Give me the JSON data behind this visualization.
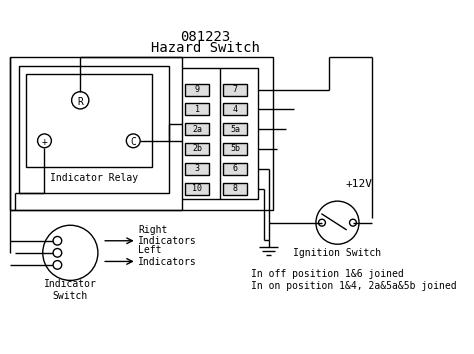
{
  "title_line1": "081223",
  "title_line2": "Hazard Switch",
  "bg_color": "#ffffff",
  "line_color": "#000000",
  "switch_pin_labels_left": [
    "9",
    "1",
    "2a",
    "2b",
    "3",
    "10"
  ],
  "switch_pin_labels_right": [
    "7",
    "4",
    "5a",
    "5b",
    "6",
    "8"
  ],
  "relay_label": "Indicator Relay",
  "indicator_switch_label": "Indicator\nSwitch",
  "ignition_label": "Ignition Switch",
  "right_ind_label": "Right\nIndicators",
  "left_ind_label": "Left\nIndicators",
  "note_line1": "In off position 1&6 joined",
  "note_line2": "In on position 1&4, 2a&5a&5b joined",
  "plus12v_label": "+12V"
}
